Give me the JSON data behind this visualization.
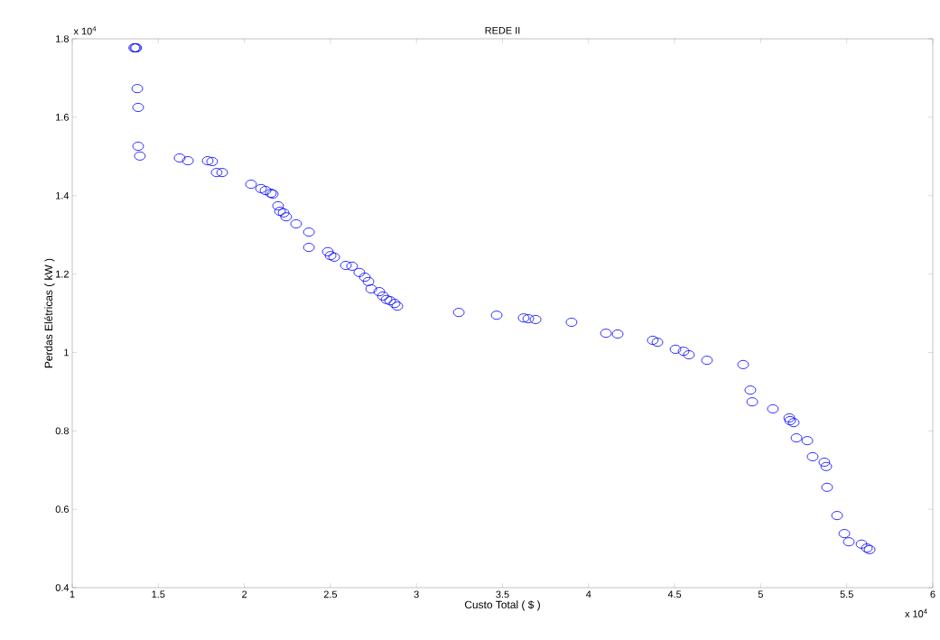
{
  "chart_data": {
    "type": "scatter",
    "title": "REDE II",
    "xlabel": "Custo Total ( $ )",
    "ylabel": "Perdas Elétricas ( kW )",
    "annotations": [
      "x 10$^{4}$",
      "x 10$^{4}$"
    ],
    "xlim": [
      1,
      6
    ],
    "ylim": [
      0.4,
      1.8
    ],
    "xticks": [
      1,
      1.5,
      2,
      2.5,
      3,
      3.5,
      4,
      4.5,
      5,
      5.5,
      6
    ],
    "yticks": [
      0.4,
      0.6,
      0.8,
      1,
      1.2,
      1.4,
      1.6,
      1.8
    ],
    "grid": false,
    "marker": "circle",
    "series": [
      {
        "color": "#0000ff",
        "x": [
          1.36,
          1.367,
          1.372,
          1.378,
          1.383,
          1.383,
          1.393,
          1.624,
          1.672,
          1.787,
          1.813,
          1.839,
          1.871,
          2.039,
          2.097,
          2.123,
          2.154,
          2.165,
          2.196,
          2.207,
          2.228,
          2.243,
          2.301,
          2.375,
          2.375,
          2.485,
          2.501,
          2.522,
          2.59,
          2.626,
          2.668,
          2.7,
          2.721,
          2.737,
          2.784,
          2.805,
          2.826,
          2.847,
          2.873,
          2.889,
          3.246,
          3.466,
          3.623,
          3.65,
          3.692,
          3.901,
          4.101,
          4.169,
          4.373,
          4.4,
          4.505,
          4.552,
          4.583,
          4.688,
          4.898,
          4.94,
          4.951,
          5.071,
          5.166,
          5.171,
          5.192,
          5.208,
          5.271,
          5.302,
          5.37,
          5.381,
          5.386,
          5.444,
          5.486,
          5.512,
          5.586,
          5.617,
          5.633
        ],
        "values": [
          1.777,
          1.777,
          1.777,
          1.673,
          1.625,
          1.526,
          1.501,
          1.496,
          1.489,
          1.489,
          1.487,
          1.459,
          1.459,
          1.429,
          1.418,
          1.413,
          1.406,
          1.404,
          1.374,
          1.36,
          1.356,
          1.346,
          1.328,
          1.307,
          1.268,
          1.257,
          1.247,
          1.243,
          1.222,
          1.22,
          1.204,
          1.192,
          1.181,
          1.162,
          1.155,
          1.144,
          1.135,
          1.132,
          1.125,
          1.118,
          1.102,
          1.095,
          1.088,
          1.086,
          1.084,
          1.077,
          1.049,
          1.047,
          1.031,
          1.026,
          1.008,
          1.003,
          0.994,
          0.98,
          0.969,
          0.904,
          0.874,
          0.856,
          0.833,
          0.826,
          0.821,
          0.782,
          0.775,
          0.734,
          0.72,
          0.709,
          0.656,
          0.584,
          0.538,
          0.517,
          0.511,
          0.501,
          0.497
        ]
      }
    ]
  }
}
